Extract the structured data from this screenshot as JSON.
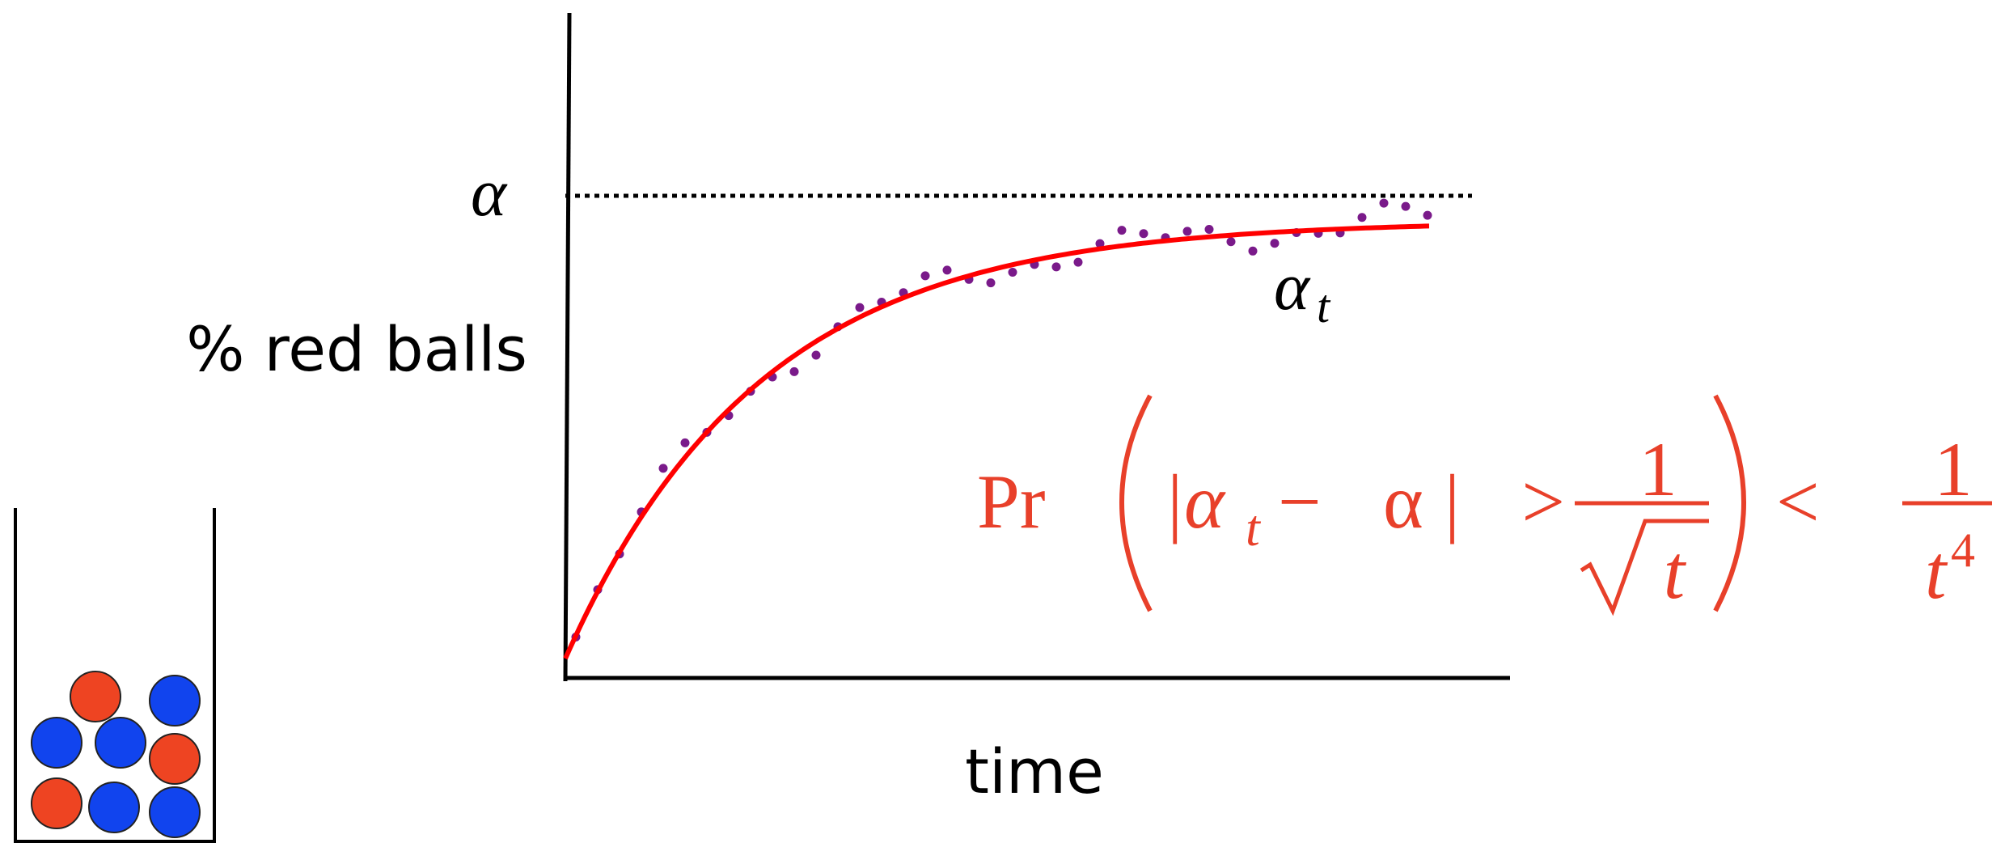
{
  "axes": {
    "level_symbol": "α",
    "y_title": "% red balls",
    "x_title": "time"
  },
  "curve_label": {
    "symbol": "α",
    "subscript": "t"
  },
  "formula": {
    "prefix": "Pr",
    "lhs": "|α",
    "lhs_subscript": "t",
    "relation": "− α| >",
    "fraction_1": {
      "numerator": "1",
      "denominator": "t"
    },
    "inequality": "<",
    "fraction_2": {
      "numerator": "1",
      "denominator": "t",
      "exponent": "4"
    }
  }
}
